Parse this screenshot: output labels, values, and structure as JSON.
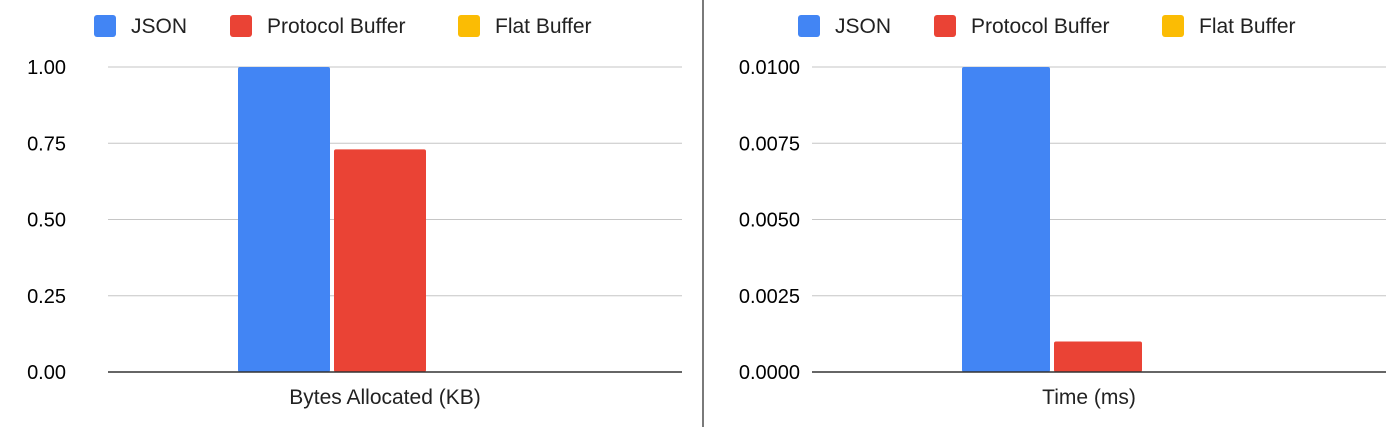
{
  "chart_data": [
    {
      "type": "bar",
      "categories": [
        "Bytes Allocated (KB)"
      ],
      "series": [
        {
          "name": "JSON",
          "color": "#4285F4",
          "values": [
            1.0
          ]
        },
        {
          "name": "Protocol Buffer",
          "color": "#EA4335",
          "values": [
            0.73
          ]
        },
        {
          "name": "Flat Buffer",
          "color": "#FBBC04",
          "values": [
            0
          ]
        }
      ],
      "ylim": [
        0,
        1
      ],
      "yticks": [
        "0.00",
        "0.25",
        "0.50",
        "0.75",
        "1.00"
      ],
      "grid": true,
      "legend_position": "top"
    },
    {
      "type": "bar",
      "categories": [
        "Time (ms)"
      ],
      "series": [
        {
          "name": "JSON",
          "color": "#4285F4",
          "values": [
            0.01
          ]
        },
        {
          "name": "Protocol Buffer",
          "color": "#EA4335",
          "values": [
            0.001
          ]
        },
        {
          "name": "Flat Buffer",
          "color": "#FBBC04",
          "values": [
            0
          ]
        }
      ],
      "ylim": [
        0,
        0.01
      ],
      "yticks": [
        "0.0000",
        "0.0025",
        "0.0050",
        "0.0075",
        "0.0100"
      ],
      "grid": true,
      "legend_position": "top"
    }
  ]
}
